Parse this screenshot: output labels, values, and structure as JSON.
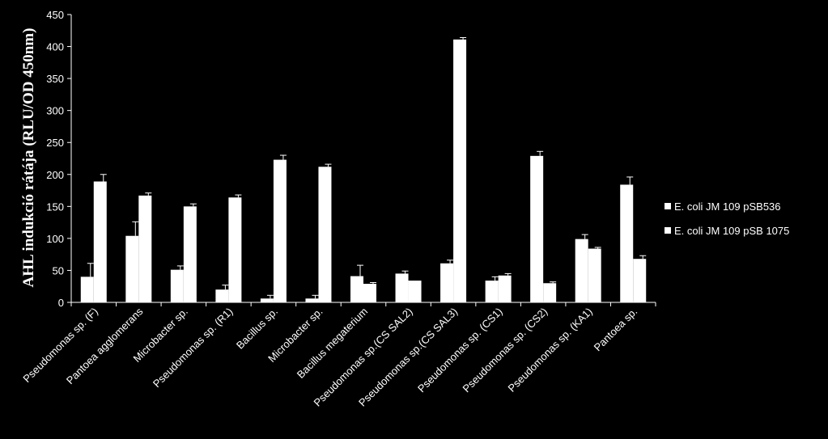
{
  "chart_data": {
    "type": "bar",
    "title": "",
    "xlabel": "",
    "ylabel": "AHL indukció rátája (RLU/OD 450nm)",
    "ylim": [
      0,
      450
    ],
    "yticks": [
      0,
      50,
      100,
      150,
      200,
      250,
      300,
      350,
      400,
      450
    ],
    "grid": false,
    "legend_position": "right",
    "categories": [
      "Pseudomonas sp. (F)",
      "Pantoea agglomerans",
      "Microbacter sp.",
      "Pseudomonas sp. (R1)",
      "Bacillus sp.",
      "Microbacter sp.",
      "Bacillus megaterium",
      "Pseudomonas sp.(CS SAL2)",
      "Pseudomonas sp.(CS SAL3)",
      "Pseudomonas sp. (CS1)",
      "Pseudomonas sp. (CS2)",
      "Pseudomonas sp. (KA1)",
      "Pantoea sp."
    ],
    "series": [
      {
        "name": "E. coli JM 109 pSB536",
        "color": "#ffffff",
        "values": [
          40,
          104,
          51,
          20,
          6,
          6,
          41,
          45,
          61,
          34,
          229,
          99,
          184
        ],
        "errors": [
          21,
          22,
          6,
          7,
          5,
          5,
          17,
          4,
          5,
          6,
          7,
          7,
          12
        ]
      },
      {
        "name": "E. coli JM 109 pSB 1075",
        "color": "#ffffff",
        "values": [
          189,
          167,
          150,
          164,
          223,
          212,
          29,
          34,
          411,
          42,
          30,
          84,
          68
        ],
        "errors": [
          11,
          4,
          4,
          4,
          7,
          4,
          2,
          0,
          3,
          3,
          2,
          2,
          5
        ]
      }
    ]
  }
}
